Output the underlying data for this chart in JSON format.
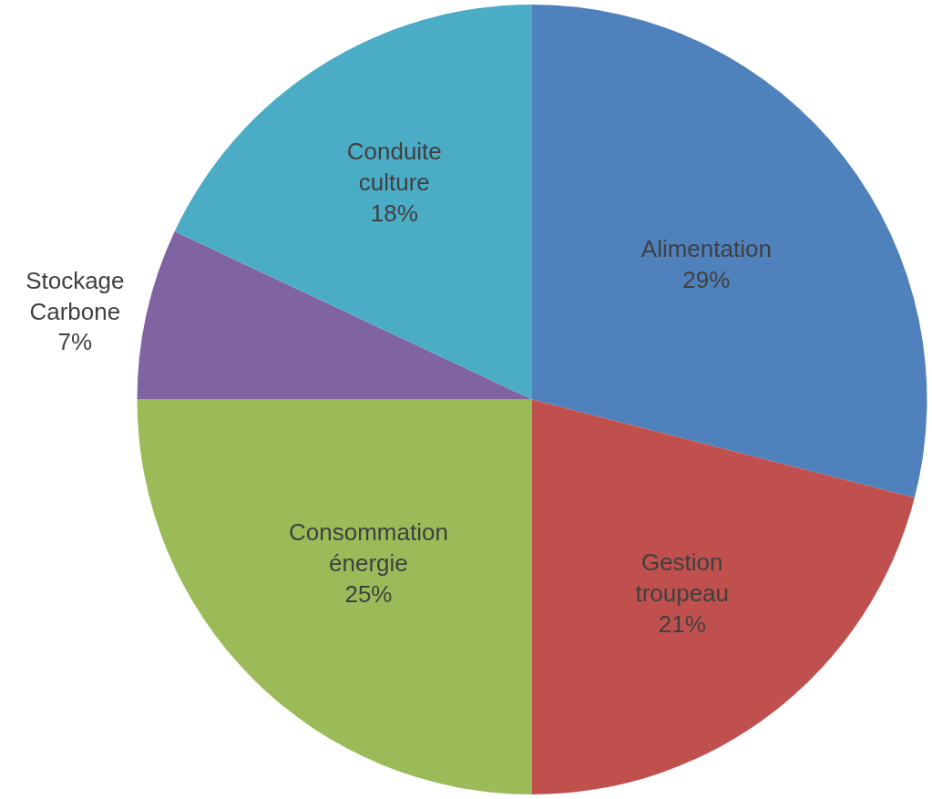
{
  "chart_data": {
    "type": "pie",
    "categories": [
      "Alimentation",
      "Gestion troupeau",
      "Consommation énergie",
      "Stockage Carbone",
      "Conduite culture"
    ],
    "values": [
      29,
      21,
      25,
      7,
      18
    ],
    "value_labels": [
      "29%",
      "21%",
      "25%",
      "7%",
      "18%"
    ],
    "colors": [
      "#4f81bd",
      "#c0504d",
      "#9bbb59",
      "#8064a2",
      "#4bacc6"
    ],
    "legend": false
  }
}
